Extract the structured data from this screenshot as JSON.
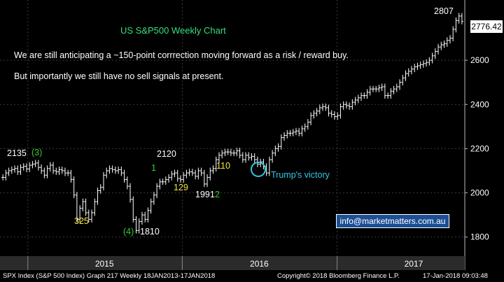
{
  "chart_title": "US S&P500 Weekly Chart",
  "notes": [
    "We are still anticipating a ~150-point corrrection moving forward as a risk  / reward buy.",
    "But importantly we still have no sell signals at present."
  ],
  "contact_email": "info@marketmatters.com.au",
  "last_price_label": "2776.42",
  "footer": {
    "left": "SPX Index (S&P 500 Index) Graph 217  Weekly 18JAN2013-17JAN2018",
    "middle": "Copyright© 2018 Bloomberg Finance L.P.",
    "right": "17-Jan-2018 09:03:48"
  },
  "colors": {
    "background": "#000000",
    "price_bars": "#ffffff",
    "annotation_green": "#33cc33",
    "annotation_yellow": "#f5e642",
    "annotation_cyan": "#35c7e6",
    "grid": "#3a3a3a"
  },
  "chart_data": {
    "type": "line",
    "style": "ohlc-bars",
    "title": "US S&P500 Weekly Chart",
    "x_range": [
      "2014-11",
      "2018-01"
    ],
    "x_ticks": [
      "2015",
      "2016",
      "2017"
    ],
    "ylim": [
      1720,
      2860
    ],
    "y_ticks": [
      1800,
      2000,
      2200,
      2400,
      2600
    ],
    "y_axis_side": "right",
    "grid": true,
    "last_value": 2776.42,
    "series": [
      {
        "values": [
          2070,
          2090,
          2100,
          2105,
          2110,
          2095,
          2115,
          2120,
          2108,
          2125,
          2130,
          2135,
          2115,
          2100,
          2080,
          2110,
          2125,
          2100,
          2095,
          2105,
          2100,
          2090,
          2090,
          2060,
          1990,
          1880,
          1930,
          1960,
          1910,
          1880,
          1910,
          1960,
          2010,
          2025,
          2080,
          2100,
          2110,
          2105,
          2100,
          2105,
          2090,
          2060,
          2030,
          1970,
          1880,
          1830,
          1870,
          1900,
          1880,
          1920,
          1960,
          1990,
          2030,
          2050,
          2050,
          2060,
          2070,
          2085,
          2090,
          2065,
          2060,
          2080,
          2090,
          2095,
          2090,
          2075,
          2100,
          2090,
          2040,
          2070,
          2100,
          2110,
          2150,
          2170,
          2180,
          2185,
          2185,
          2180,
          2180,
          2190,
          2170,
          2150,
          2170,
          2160,
          2165,
          2150,
          2130,
          2140,
          2120,
          2090,
          2150,
          2180,
          2200,
          2210,
          2250,
          2260,
          2270,
          2270,
          2275,
          2280,
          2270,
          2290,
          2300,
          2320,
          2350,
          2360,
          2370,
          2385,
          2390,
          2385,
          2360,
          2355,
          2345,
          2350,
          2390,
          2400,
          2395,
          2390,
          2410,
          2420,
          2430,
          2440,
          2440,
          2455,
          2470,
          2470,
          2470,
          2475,
          2480,
          2440,
          2440,
          2460,
          2470,
          2480,
          2500,
          2520,
          2540,
          2550,
          2560,
          2570,
          2575,
          2580,
          2585,
          2590,
          2600,
          2620,
          2640,
          2660,
          2670,
          2675,
          2690,
          2700,
          2740,
          2780,
          2800,
          2776.42
        ]
      }
    ],
    "annotations": [
      {
        "text": "2135",
        "color": "white"
      },
      {
        "text": "(3)",
        "color": "green"
      },
      {
        "text": "325",
        "color": "yellow"
      },
      {
        "text": "(4)",
        "color": "green"
      },
      {
        "text": "1810",
        "color": "white"
      },
      {
        "text": "1",
        "color": "green"
      },
      {
        "text": "2120",
        "color": "white"
      },
      {
        "text": "129",
        "color": "yellow"
      },
      {
        "text": "1991",
        "color": "white"
      },
      {
        "text": "2",
        "color": "green"
      },
      {
        "text": "110",
        "color": "yellow"
      },
      {
        "text": "Trump's victory",
        "color": "cyan"
      },
      {
        "text": "2807",
        "color": "white"
      }
    ]
  }
}
